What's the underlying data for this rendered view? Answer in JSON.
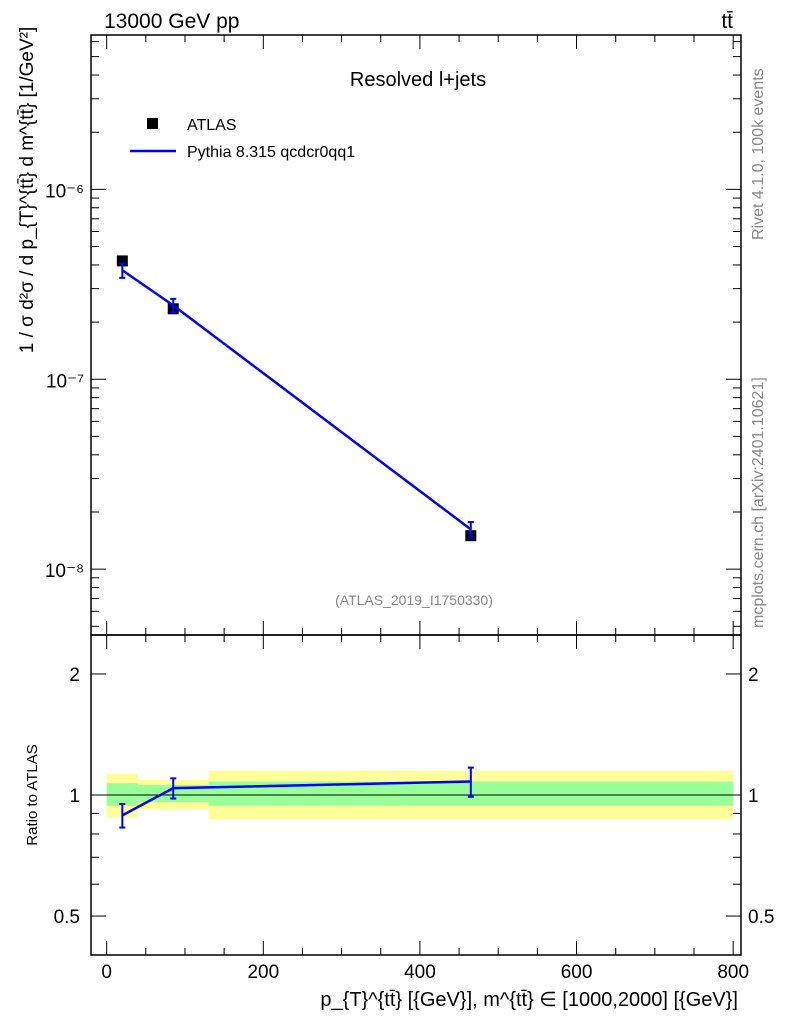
{
  "header": {
    "left_title": "13000 GeV pp",
    "right_title": "tt̄"
  },
  "side_text": {
    "rivet": "Rivet 4.1.0,  100k events",
    "mcplots": "mcplots.cern.ch [arXiv:2401.10621]"
  },
  "colors": {
    "data_marker": "#000000",
    "mc_line": "#0000ff",
    "band_inner": "#99ff99",
    "band_outer": "#ffff99"
  },
  "chart_data": [
    {
      "type": "scatter",
      "panel": "main",
      "title": "Resolved l+jets",
      "analysis_id": "(ATLAS_2019_I1750330)",
      "ylabel": "1 / σ d²σ / d p_{T}^{tt̄} d m^{tt̄} [1/GeV²]",
      "yscale": "log",
      "ylim": [
        4.5e-09,
        6.5e-06
      ],
      "xlim": [
        -20,
        810
      ],
      "y_ticks": [
        {
          "value": 1e-06,
          "label": "10⁻⁶"
        },
        {
          "value": 1e-07,
          "label": "10⁻⁷"
        },
        {
          "value": 1e-08,
          "label": "10⁻⁸"
        }
      ],
      "legend": [
        {
          "name": "ATLAS",
          "marker": "square"
        },
        {
          "name": "Pythia 8.315 qcdcr0qq1",
          "marker": "line"
        }
      ],
      "series": [
        {
          "name": "ATLAS",
          "x": [
            20,
            85,
            465
          ],
          "y": [
            4.2e-07,
            2.35e-07,
            1.5e-08
          ]
        },
        {
          "name": "Pythia 8.315 qcdcr0qq1",
          "x": [
            20,
            85,
            465
          ],
          "y": [
            3.75e-07,
            2.45e-07,
            1.62e-08
          ],
          "yerr": [
            3.3e-08,
            2e-08,
            1.5e-09
          ]
        }
      ]
    },
    {
      "type": "line",
      "panel": "ratio",
      "ylabel": "Ratio to ATLAS",
      "xlabel": "p_{T}^{tt̄} [{GeV}], m^{tt̄} ∈ [1000,2000] [{GeV}]",
      "yscale": "log",
      "ylim": [
        0.4,
        2.5
      ],
      "xlim": [
        -20,
        810
      ],
      "x_ticks": [
        0,
        200,
        400,
        600,
        800
      ],
      "y_ticks": [
        {
          "value": 2,
          "label": "2"
        },
        {
          "value": 1,
          "label": "1"
        },
        {
          "value": 0.5,
          "label": "0.5"
        }
      ],
      "bands": [
        {
          "x_lo": 0,
          "x_hi": 40,
          "inner": [
            0.94,
            1.07
          ],
          "outer": [
            0.88,
            1.13
          ]
        },
        {
          "x_lo": 40,
          "x_hi": 130,
          "inner": [
            0.96,
            1.06
          ],
          "outer": [
            0.92,
            1.09
          ]
        },
        {
          "x_lo": 130,
          "x_hi": 800,
          "inner": [
            0.94,
            1.08
          ],
          "outer": [
            0.87,
            1.15
          ]
        }
      ],
      "series": [
        {
          "name": "Pythia 8.315 qcdcr0qq1",
          "x": [
            20,
            85,
            465
          ],
          "y": [
            0.89,
            1.04,
            1.08
          ],
          "yerr": [
            0.06,
            0.06,
            0.09
          ]
        }
      ]
    }
  ]
}
